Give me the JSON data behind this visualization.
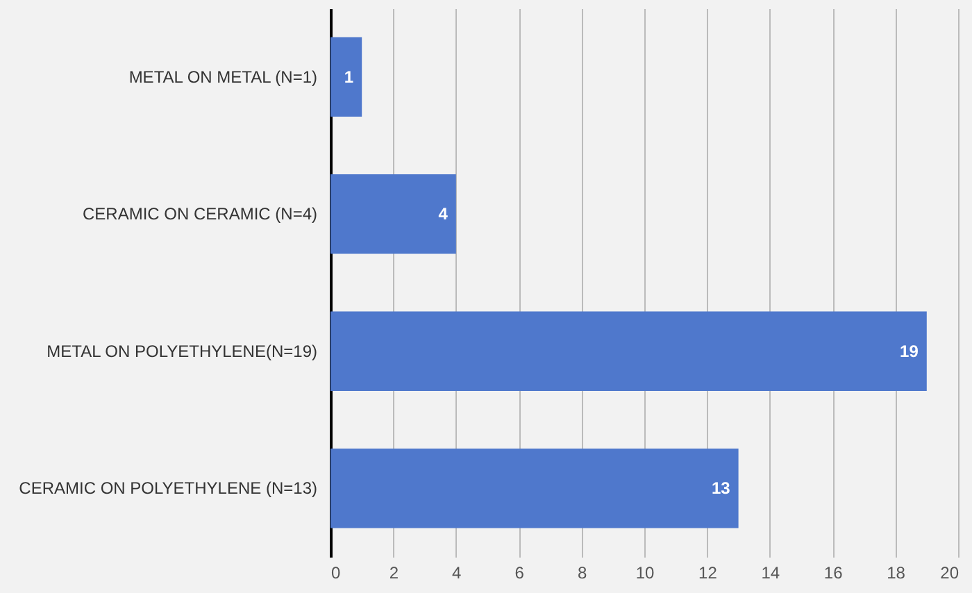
{
  "chart_data": {
    "type": "bar",
    "orientation": "horizontal",
    "categories": [
      "METAL ON METAL (N=1)",
      "CERAMIC ON CERAMIC (N=4)",
      "METAL ON POLYETHYLENE(N=19)",
      "CERAMIC ON POLYETHYLENE (N=13)"
    ],
    "values": [
      1,
      4,
      19,
      13
    ],
    "color": "#4f78cc",
    "xlim": [
      0,
      20
    ],
    "xticks": [
      0,
      2,
      4,
      6,
      8,
      10,
      12,
      14,
      16,
      18,
      20
    ],
    "grid": "x",
    "data_labels": true
  }
}
